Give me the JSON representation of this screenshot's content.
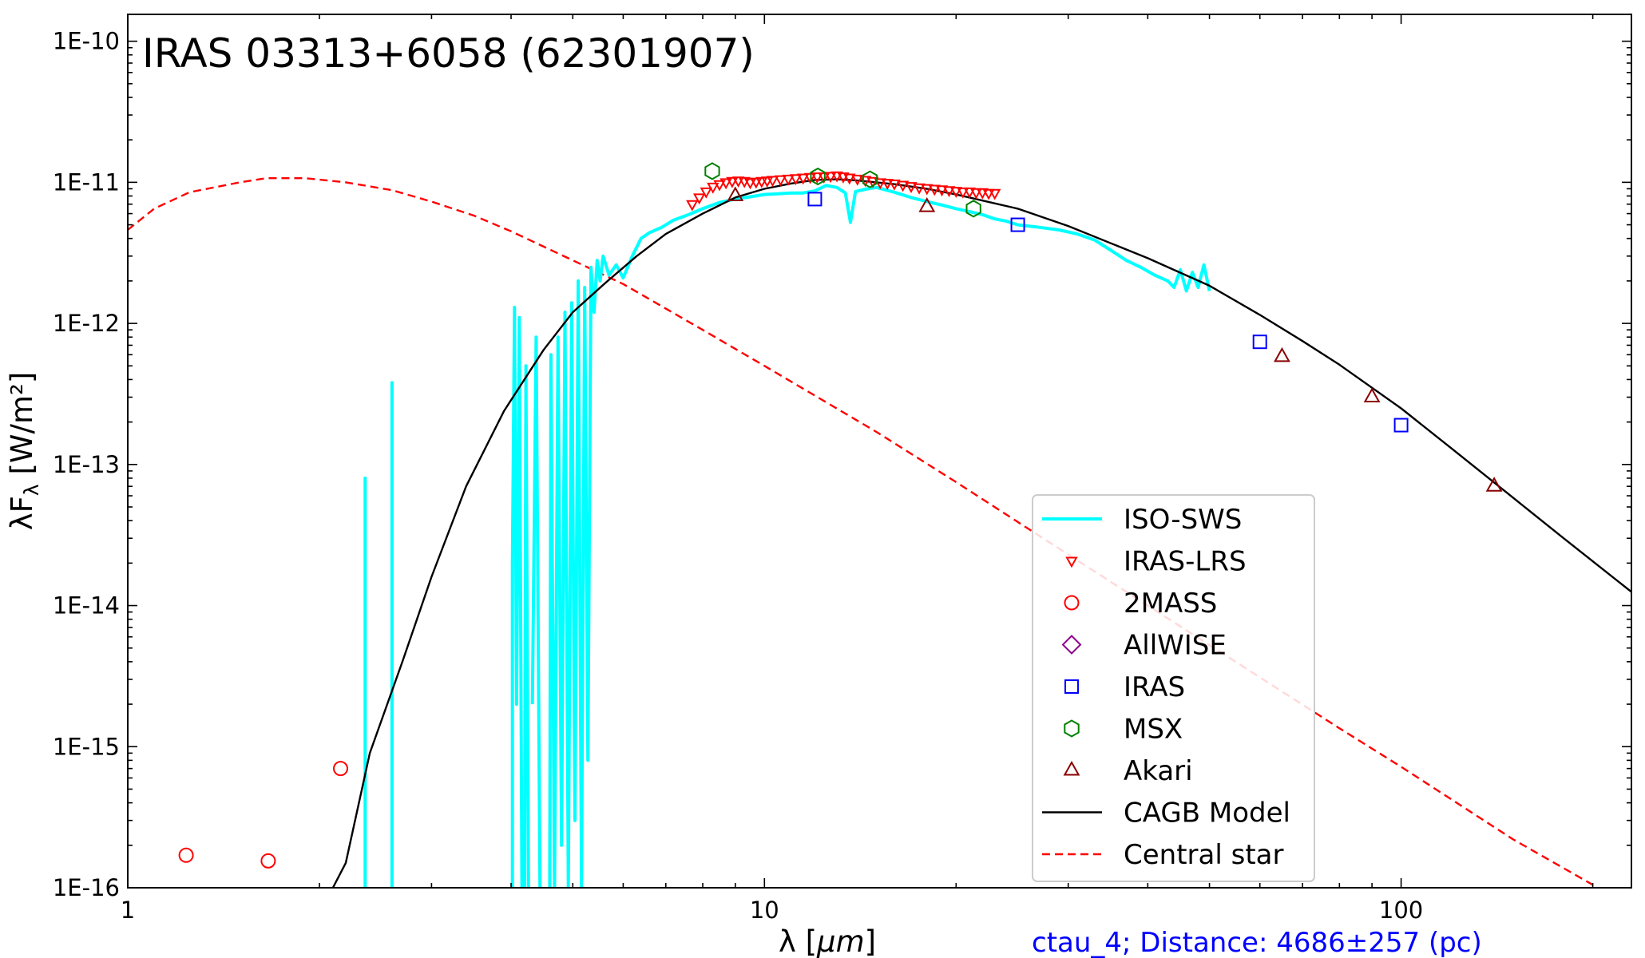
{
  "chart_data": {
    "type": "scatter",
    "title": "IRAS 03313+6058  (62301907)",
    "xlabel_prefix": "λ [",
    "xlabel_unit": "μm",
    "xlabel_suffix": "]",
    "ylabel_prefix": "λF",
    "ylabel_sub": "λ",
    "ylabel_suffix": " [W/m²]",
    "caption": "ctau_4; Distance: 4686±257 (pc)",
    "x_scale": "log",
    "y_scale": "log",
    "xlim": [
      1,
      230
    ],
    "ylim": [
      1e-16,
      1.55e-10
    ],
    "x_ticks": [
      {
        "value": 1,
        "label": "1"
      },
      {
        "value": 10,
        "label": "10"
      },
      {
        "value": 100,
        "label": "100"
      }
    ],
    "y_ticks": [
      {
        "value": 1e-16,
        "label": "1E-16"
      },
      {
        "value": 1e-15,
        "label": "1E-15"
      },
      {
        "value": 1e-14,
        "label": "1E-14"
      },
      {
        "value": 1e-13,
        "label": "1E-13"
      },
      {
        "value": 1e-12,
        "label": "1E-12"
      },
      {
        "value": 1e-11,
        "label": "1E-11"
      },
      {
        "value": 1e-10,
        "label": "1E-10"
      }
    ],
    "legend_position": "lower-right",
    "series": [
      {
        "name": "ISO-SWS",
        "kind": "line",
        "color": "#00ffff",
        "segments": [
          [
            [
              2.36,
              1e-16
            ],
            [
              2.36,
              8e-14
            ],
            [
              2.36,
              1e-16
            ]
          ],
          [
            [
              2.6,
              1e-16
            ],
            [
              2.6,
              3.8e-13
            ],
            [
              2.6,
              1e-16
            ]
          ],
          [
            [
              4.02,
              1e-16
            ],
            [
              4.02,
              2e-14
            ],
            [
              4.05,
              1.3e-12
            ],
            [
              4.08,
              2e-15
            ],
            [
              4.12,
              1.1e-12
            ],
            [
              4.16,
              1e-16
            ]
          ],
          [
            [
              4.2,
              1e-16
            ],
            [
              4.22,
              5e-13
            ],
            [
              4.26,
              1e-16
            ]
          ],
          [
            [
              4.32,
              2e-15
            ],
            [
              4.38,
              8e-13
            ],
            [
              4.44,
              1e-16
            ]
          ]
        ],
        "points": [
          [
            4.6,
            1e-16
          ],
          [
            4.62,
            6e-13
          ],
          [
            4.68,
            1e-16
          ],
          [
            4.74,
            8e-13
          ],
          [
            4.8,
            2e-16
          ],
          [
            4.86,
            1.2e-12
          ],
          [
            4.92,
            1e-16
          ],
          [
            4.98,
            1.4e-12
          ],
          [
            5.04,
            3e-16
          ],
          [
            5.1,
            2e-12
          ],
          [
            5.16,
            1e-16
          ],
          [
            5.22,
            1.8e-12
          ],
          [
            5.28,
            8e-16
          ],
          [
            5.34,
            2.5e-12
          ],
          [
            5.4,
            1.2e-12
          ],
          [
            5.46,
            2.8e-12
          ],
          [
            5.52,
            2e-12
          ],
          [
            5.58,
            3e-12
          ],
          [
            5.7,
            2.2e-12
          ],
          [
            5.85,
            2.6e-12
          ],
          [
            6.0,
            2.1e-12
          ],
          [
            6.2,
            3e-12
          ],
          [
            6.4,
            4e-12
          ],
          [
            6.6,
            4.4e-12
          ],
          [
            6.9,
            4.8e-12
          ],
          [
            7.2,
            5.4e-12
          ],
          [
            7.6,
            5.9e-12
          ],
          [
            8.0,
            6.5e-12
          ],
          [
            8.5,
            7.2e-12
          ],
          [
            9.0,
            7.6e-12
          ],
          [
            9.5,
            7.9e-12
          ],
          [
            10.0,
            8.2e-12
          ],
          [
            10.5,
            8.3e-12
          ],
          [
            11.0,
            8.4e-12
          ],
          [
            11.5,
            8.4e-12
          ],
          [
            12.0,
            8.7e-12
          ],
          [
            12.5,
            9.5e-12
          ],
          [
            13.0,
            9.2e-12
          ],
          [
            13.4,
            8.4e-12
          ],
          [
            13.65,
            5.2e-12
          ],
          [
            13.9,
            8.6e-12
          ],
          [
            14.5,
            9e-12
          ],
          [
            15.0,
            9.2e-12
          ],
          [
            16.0,
            8.5e-12
          ],
          [
            17.0,
            7.8e-12
          ],
          [
            18.0,
            7.3e-12
          ],
          [
            19.0,
            6.9e-12
          ],
          [
            20.0,
            6.5e-12
          ],
          [
            21.0,
            6.2e-12
          ],
          [
            22.0,
            5.9e-12
          ],
          [
            23.0,
            5.5e-12
          ],
          [
            24.0,
            5.3e-12
          ],
          [
            25.0,
            5e-12
          ],
          [
            27.0,
            4.8e-12
          ],
          [
            29.0,
            4.6e-12
          ],
          [
            31.0,
            4.3e-12
          ],
          [
            33.0,
            3.9e-12
          ],
          [
            35.0,
            3.3e-12
          ],
          [
            37.0,
            2.8e-12
          ],
          [
            39.0,
            2.5e-12
          ],
          [
            41.0,
            2.2e-12
          ],
          [
            43.0,
            2e-12
          ],
          [
            44.0,
            1.8e-12
          ],
          [
            45.0,
            2.4e-12
          ],
          [
            46.0,
            1.7e-12
          ],
          [
            47.0,
            2.3e-12
          ],
          [
            48.0,
            1.8e-12
          ],
          [
            49.0,
            2.6e-12
          ],
          [
            50.0,
            1.7e-12
          ]
        ]
      },
      {
        "name": "IRAS-LRS",
        "kind": "marker",
        "marker": "triangle-down",
        "color": "#ff0000",
        "points": [
          [
            7.7,
            7e-12
          ],
          [
            7.9,
            7.8e-12
          ],
          [
            8.1,
            8.6e-12
          ],
          [
            8.3,
            9.3e-12
          ],
          [
            8.5,
            9.7e-12
          ],
          [
            8.7,
            1e-11
          ],
          [
            8.9,
            1.02e-11
          ],
          [
            9.1,
            1.03e-11
          ],
          [
            9.3,
            1.02e-11
          ],
          [
            9.5,
            1e-11
          ],
          [
            9.7,
            1.01e-11
          ],
          [
            9.9,
            1.02e-11
          ],
          [
            10.1,
            1.03e-11
          ],
          [
            10.3,
            1.04e-11
          ],
          [
            10.6,
            1.05e-11
          ],
          [
            10.9,
            1.06e-11
          ],
          [
            11.2,
            1.07e-11
          ],
          [
            11.5,
            1.08e-11
          ],
          [
            11.8,
            1.09e-11
          ],
          [
            12.1,
            1.1e-11
          ],
          [
            12.4,
            1.1e-11
          ],
          [
            12.7,
            1.11e-11
          ],
          [
            13.0,
            1.12e-11
          ],
          [
            13.3,
            1.1e-11
          ],
          [
            13.6,
            1.08e-11
          ],
          [
            14.0,
            1.06e-11
          ],
          [
            14.4,
            1.04e-11
          ],
          [
            14.8,
            1.02e-11
          ],
          [
            15.2,
            1e-11
          ],
          [
            15.6,
            9.9e-12
          ],
          [
            16.0,
            9.8e-12
          ],
          [
            16.5,
            9.6e-12
          ],
          [
            17.0,
            9.4e-12
          ],
          [
            17.5,
            9.2e-12
          ],
          [
            18.0,
            9.1e-12
          ],
          [
            18.5,
            9e-12
          ],
          [
            19.0,
            8.9e-12
          ],
          [
            19.5,
            8.8e-12
          ],
          [
            20.0,
            8.7e-12
          ],
          [
            20.5,
            8.6e-12
          ],
          [
            21.0,
            8.6e-12
          ],
          [
            21.5,
            8.5e-12
          ],
          [
            22.0,
            8.5e-12
          ],
          [
            22.5,
            8.4e-12
          ],
          [
            23.0,
            8.4e-12
          ]
        ]
      },
      {
        "name": "2MASS",
        "kind": "marker",
        "marker": "circle",
        "color": "#ff0000",
        "points": [
          [
            1.235,
            1.7e-16
          ],
          [
            1.662,
            1.55e-16
          ],
          [
            2.159,
            7e-16
          ]
        ]
      },
      {
        "name": "AllWISE",
        "kind": "marker",
        "marker": "diamond",
        "color": "#8b008b",
        "points": []
      },
      {
        "name": "IRAS",
        "kind": "marker",
        "marker": "square",
        "color": "#0000ff",
        "points": [
          [
            12,
            7.6e-12
          ],
          [
            25,
            5e-12
          ],
          [
            60,
            7.4e-13
          ],
          [
            100,
            1.9e-13
          ]
        ]
      },
      {
        "name": "MSX",
        "kind": "marker",
        "marker": "hexagon",
        "color": "#008000",
        "points": [
          [
            8.28,
            1.2e-11
          ],
          [
            12.13,
            1.1e-11
          ],
          [
            14.65,
            1.05e-11
          ],
          [
            21.3,
            6.5e-12
          ]
        ]
      },
      {
        "name": "Akari",
        "kind": "marker",
        "marker": "triangle-up",
        "color": "#8b0000",
        "points": [
          [
            9,
            8e-12
          ],
          [
            18,
            6.7e-12
          ],
          [
            65,
            5.8e-13
          ],
          [
            90,
            3e-13
          ],
          [
            140,
            7e-14
          ]
        ]
      },
      {
        "name": "CAGB Model",
        "kind": "line",
        "color": "#000000",
        "dash": "solid",
        "points": [
          [
            2.1,
            1e-16
          ],
          [
            2.2,
            1.5e-16
          ],
          [
            2.4,
            9e-16
          ],
          [
            2.7,
            4e-15
          ],
          [
            3.0,
            1.6e-14
          ],
          [
            3.4,
            7e-14
          ],
          [
            3.9,
            2.4e-13
          ],
          [
            4.5,
            6.5e-13
          ],
          [
            5.0,
            1.2e-12
          ],
          [
            5.6,
            1.9e-12
          ],
          [
            6.3,
            3e-12
          ],
          [
            7.0,
            4.3e-12
          ],
          [
            8.0,
            6e-12
          ],
          [
            9.0,
            7.8e-12
          ],
          [
            10.0,
            9e-12
          ],
          [
            11.0,
            9.8e-12
          ],
          [
            12.0,
            1.04e-11
          ],
          [
            13.0,
            1.05e-11
          ],
          [
            14.0,
            1.03e-11
          ],
          [
            16.0,
            9.7e-12
          ],
          [
            18.0,
            9e-12
          ],
          [
            20.0,
            8.2e-12
          ],
          [
            25.0,
            6.5e-12
          ],
          [
            30.0,
            4.9e-12
          ],
          [
            40.0,
            2.9e-12
          ],
          [
            50.0,
            1.85e-12
          ],
          [
            60.0,
            1.15e-12
          ],
          [
            70.0,
            7.5e-13
          ],
          [
            80.0,
            5.1e-13
          ],
          [
            100.0,
            2.5e-13
          ],
          [
            120.0,
            1.3e-13
          ],
          [
            150.0,
            5.8e-14
          ],
          [
            180.0,
            3e-14
          ],
          [
            230.0,
            1.25e-14
          ]
        ]
      },
      {
        "name": "Central star",
        "kind": "line",
        "color": "#ff0000",
        "dash": "dashed",
        "points": [
          [
            1.0,
            4.6e-12
          ],
          [
            1.1,
            6.5e-12
          ],
          [
            1.25,
            8.5e-12
          ],
          [
            1.5,
            1e-11
          ],
          [
            1.65,
            1.07e-11
          ],
          [
            1.9,
            1.07e-11
          ],
          [
            2.2,
            1e-11
          ],
          [
            2.6,
            8.8e-12
          ],
          [
            3.0,
            7.3e-12
          ],
          [
            3.5,
            5.8e-12
          ],
          [
            4.0,
            4.5e-12
          ],
          [
            5.0,
            2.8e-12
          ],
          [
            6.0,
            1.9e-12
          ],
          [
            8.0,
            9e-13
          ],
          [
            10.0,
            5e-13
          ],
          [
            15.0,
            1.7e-13
          ],
          [
            20.0,
            7.5e-14
          ],
          [
            30.0,
            2.3e-14
          ],
          [
            40.0,
            1e-14
          ],
          [
            60.0,
            3.1e-15
          ],
          [
            80.0,
            1.35e-15
          ],
          [
            100.0,
            7.2e-16
          ],
          [
            150.0,
            2.2e-16
          ],
          [
            200.0,
            1.05e-16
          ]
        ]
      }
    ]
  }
}
